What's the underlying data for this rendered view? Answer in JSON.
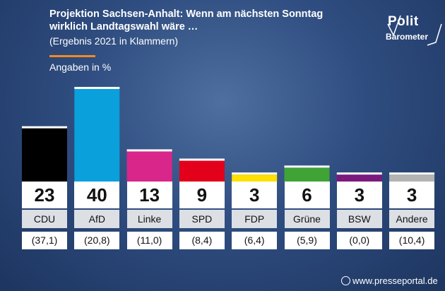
{
  "header": {
    "title_line1": "Projektion Sachsen-Anhalt: Wenn am nächsten Sonntag",
    "title_line2": "wirklich Landtagswahl wäre …",
    "subtitle": "(Ergebnis 2021 in Klammern)",
    "units": "Angaben in %"
  },
  "logo": {
    "top": "Polit",
    "bottom": "Barometer"
  },
  "credit": "www.presseportal.de",
  "colors": {
    "accent": "#f08a24",
    "background": "#2f4d80"
  },
  "chart_data": {
    "type": "bar",
    "categories": [
      "CDU",
      "AfD",
      "Linke",
      "SPD",
      "FDP",
      "Grüne",
      "BSW",
      "Andere"
    ],
    "values": [
      23,
      40,
      13,
      9,
      3,
      6,
      3,
      3
    ],
    "labels": [
      "23",
      "40",
      "13",
      "9",
      "3",
      "6",
      "3",
      "3"
    ],
    "previous_labels": [
      "(37,1)",
      "(20,8)",
      "(11,0)",
      "(8,4)",
      "(6,4)",
      "(5,9)",
      "(0,0)",
      "(10,4)"
    ],
    "colors": [
      "#000000",
      "#0aa0db",
      "#d9268b",
      "#e3001b",
      "#ffe000",
      "#3fa336",
      "#7b1a7e",
      "#b3b3b3"
    ],
    "title": "Projektion Sachsen-Anhalt: Wenn am nächsten Sonntag wirklich Landtagswahl wäre …",
    "subtitle": "(Ergebnis 2021 in Klammern)",
    "ylabel": "Angaben in %",
    "xlabel": "",
    "ylim": [
      0,
      40
    ],
    "grid": false,
    "legend": "none"
  }
}
